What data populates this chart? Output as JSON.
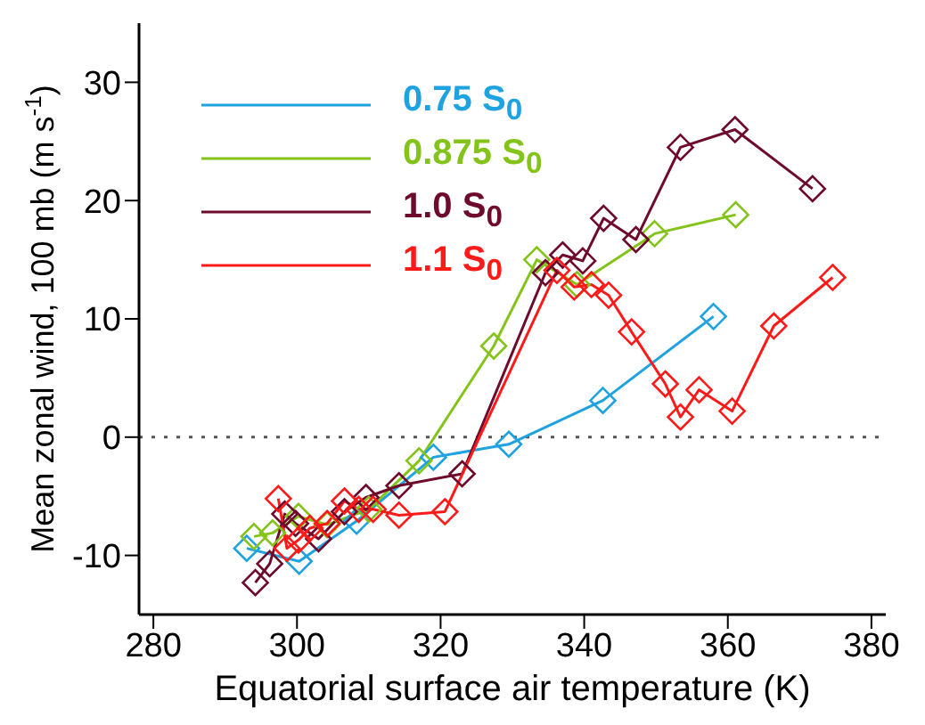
{
  "chart_data": {
    "type": "line",
    "xlabel": "Equatorial surface air temperature (K)",
    "ylabel": "Mean zonal wind, 100 mb (m s$^{-1}$)",
    "xlim": [
      278,
      382
    ],
    "xticks": [
      280,
      300,
      320,
      340,
      360,
      380
    ],
    "ylim": [
      -15,
      35
    ],
    "yticks": [
      -10,
      0,
      10,
      20,
      30
    ],
    "grid": false,
    "legend": "top left",
    "marker": "diamond",
    "line_style": "solid",
    "ref_lines": [
      {
        "axis": "y",
        "value": 0,
        "line_style": "dotted",
        "color": "#555555"
      }
    ],
    "series": [
      {
        "name": "0.75 S$_{0}$",
        "color": "#1fa3e0",
        "x": [
          293,
          300.3,
          308.3,
          319,
          329.5,
          342.6,
          358
        ],
        "values": [
          -9.4,
          -10.5,
          -7.1,
          -1.7,
          -0.6,
          3.1,
          10.2
        ]
      },
      {
        "name": "0.875 S$_{0}$",
        "color": "#84c41a",
        "x": [
          294,
          296.6,
          300.2,
          304.2,
          310,
          317,
          327.4,
          333.4,
          339,
          349.8,
          361.1
        ],
        "values": [
          -8.4,
          -8.1,
          -6.7,
          -7.4,
          -6.1,
          -2,
          7.7,
          15,
          12.9,
          17.2,
          18.8
        ]
      },
      {
        "name": "1.0 S$_{0}$",
        "color": "#6e0a2c",
        "x": [
          294.2,
          296.2,
          298.3,
          299.8,
          303,
          306.6,
          309.6,
          314.2,
          323,
          334.6,
          337,
          339.8,
          342.7,
          347.2,
          353.4,
          361,
          371.8
        ],
        "values": [
          -12.3,
          -10.7,
          -6.5,
          -7.3,
          -8.6,
          -6.3,
          -5.1,
          -4.1,
          -3.1,
          13.9,
          15.4,
          14.9,
          18.5,
          16.7,
          24.5,
          26,
          21
        ]
      },
      {
        "name": "1.1 S$_{0}$",
        "color": "#ff1a1a",
        "x": [
          297.4,
          298.6,
          300.2,
          301.8,
          304.2,
          306.6,
          308.6,
          310.6,
          314.2,
          320.6,
          336.2,
          338.6,
          341,
          343.4,
          346.6,
          351.3,
          353.4,
          356,
          360.6,
          366.4,
          374.6
        ],
        "values": [
          -5.2,
          -9.4,
          -8.7,
          -7.7,
          -7.3,
          -5.4,
          -6.1,
          -6.1,
          -6.6,
          -6.3,
          14.1,
          12.7,
          12.9,
          12,
          8.9,
          4.5,
          1.7,
          4,
          2.2,
          9.4,
          13.5
        ]
      }
    ]
  }
}
